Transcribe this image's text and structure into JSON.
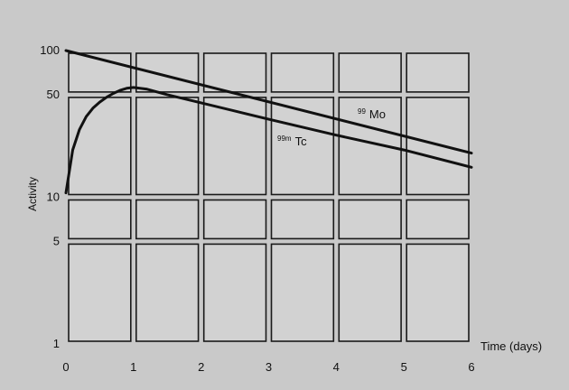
{
  "chart_data": {
    "type": "line",
    "title": "",
    "xlabel": "Time (days)",
    "ylabel": "Activity",
    "xlim": [
      0,
      6
    ],
    "ylim": [
      1,
      100
    ],
    "y_scale": "log",
    "grid": true,
    "x_ticks": [
      "0",
      "1",
      "2",
      "3",
      "4",
      "5",
      "6"
    ],
    "y_ticks": [
      "1",
      "5",
      "10",
      "50",
      "100"
    ],
    "series": [
      {
        "name": "99 Mo",
        "name_sup": "99",
        "name_main": "Mo",
        "x": [
          0,
          6
        ],
        "y": [
          100,
          20
        ]
      },
      {
        "name": "99m Tc",
        "name_sup": "99m",
        "name_main": "Tc",
        "x": [
          0,
          0.1,
          0.2,
          0.3,
          0.4,
          0.5,
          0.6,
          0.7,
          0.8,
          0.9,
          1.0,
          1.2,
          1.5,
          2,
          3,
          4,
          5,
          6
        ],
        "y": [
          10.7,
          21,
          29,
          35.5,
          40.5,
          44.5,
          48,
          51,
          53.5,
          55.3,
          56,
          54.5,
          50,
          44,
          34,
          26.5,
          21,
          16
        ]
      }
    ]
  }
}
